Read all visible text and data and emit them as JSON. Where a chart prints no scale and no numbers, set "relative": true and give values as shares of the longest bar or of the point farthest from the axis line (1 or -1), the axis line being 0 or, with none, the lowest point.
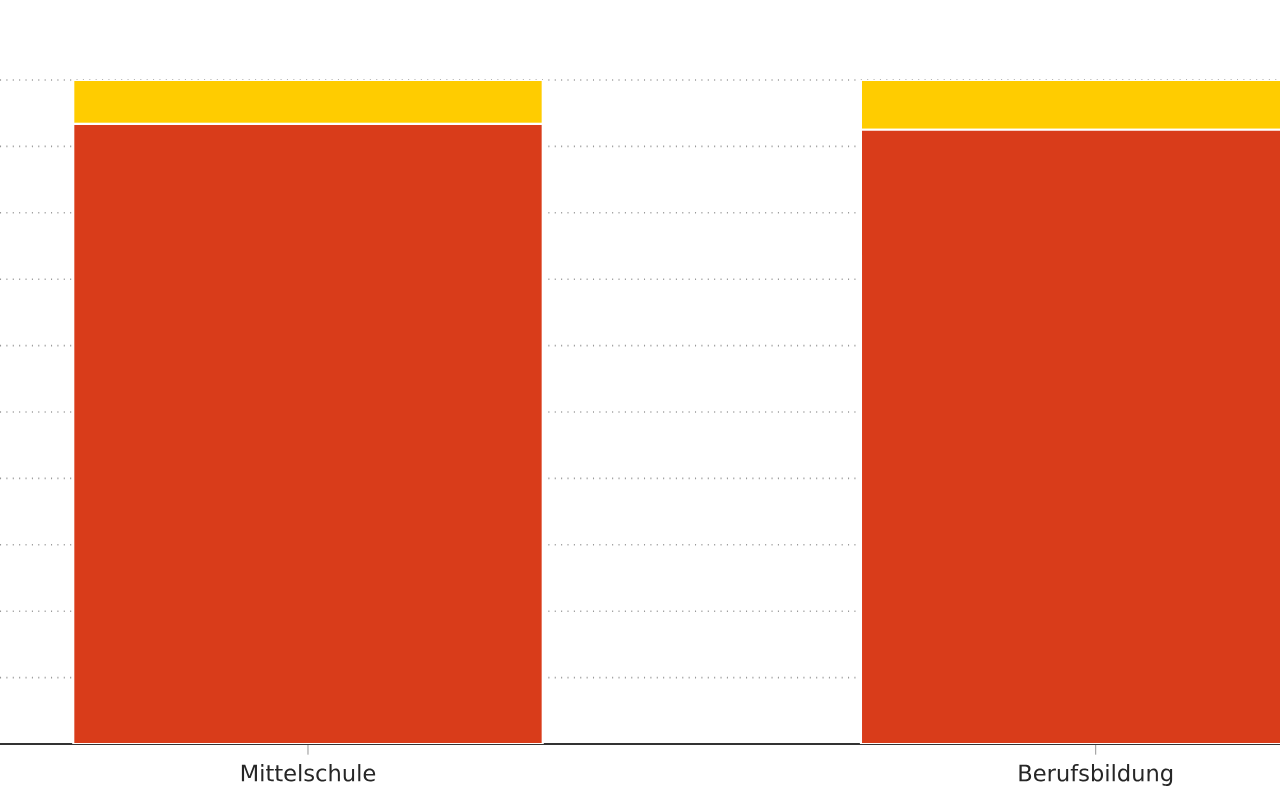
{
  "chart_data": {
    "type": "bar",
    "stacked": true,
    "relative": true,
    "grid": "y",
    "categories": [
      "Mittelschule",
      "Berufsbildung"
    ],
    "series": [
      {
        "color": "#d93c1a",
        "values": [
          0.934,
          0.925
        ]
      },
      {
        "color": "#ffcc00",
        "values": [
          0.066,
          0.075
        ]
      }
    ]
  }
}
